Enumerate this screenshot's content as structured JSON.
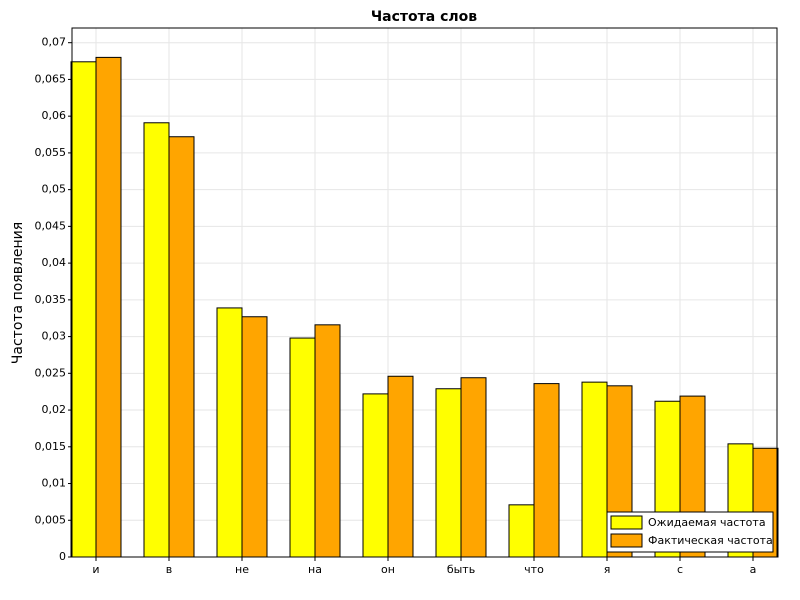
{
  "chart_data": {
    "type": "bar",
    "title": "Частота слов",
    "y_label": "Частота появления",
    "categories": [
      "и",
      "в",
      "не",
      "на",
      "он",
      "быть",
      "что",
      "я",
      "с",
      "а"
    ],
    "series": [
      {
        "name": "Ожидаемая частота",
        "color": "#ffff00",
        "values": [
          0.0674,
          0.0591,
          0.0339,
          0.0298,
          0.0222,
          0.0229,
          0.0071,
          0.0238,
          0.0212,
          0.0154
        ]
      },
      {
        "name": "Фактическая частота",
        "color": "#ffa500",
        "values": [
          0.068,
          0.0572,
          0.0327,
          0.0316,
          0.0246,
          0.0244,
          0.0236,
          0.0233,
          0.0219,
          0.0148
        ]
      }
    ],
    "ylim": [
      0,
      0.072
    ],
    "yticks": [
      0,
      {
        "value": 0.005,
        "label": "0,005"
      },
      {
        "value": 0.01,
        "label": "0,01"
      },
      {
        "value": 0.015,
        "label": "0,015"
      },
      {
        "value": 0.02,
        "label": "0,02"
      },
      {
        "value": 0.025,
        "label": "0,025"
      },
      {
        "value": 0.03,
        "label": "0,03"
      },
      {
        "value": 0.035,
        "label": "0,035"
      },
      {
        "value": 0.04,
        "label": "0,04"
      },
      {
        "value": 0.045,
        "label": "0,045"
      },
      {
        "value": 0.05,
        "label": "0,05"
      },
      {
        "value": 0.055,
        "label": "0,055"
      },
      {
        "value": 0.06,
        "label": "0,06"
      },
      {
        "value": 0.065,
        "label": "0,065"
      },
      {
        "value": 0.07,
        "label": "0,07"
      }
    ],
    "grid": true,
    "legend": "lower right"
  }
}
